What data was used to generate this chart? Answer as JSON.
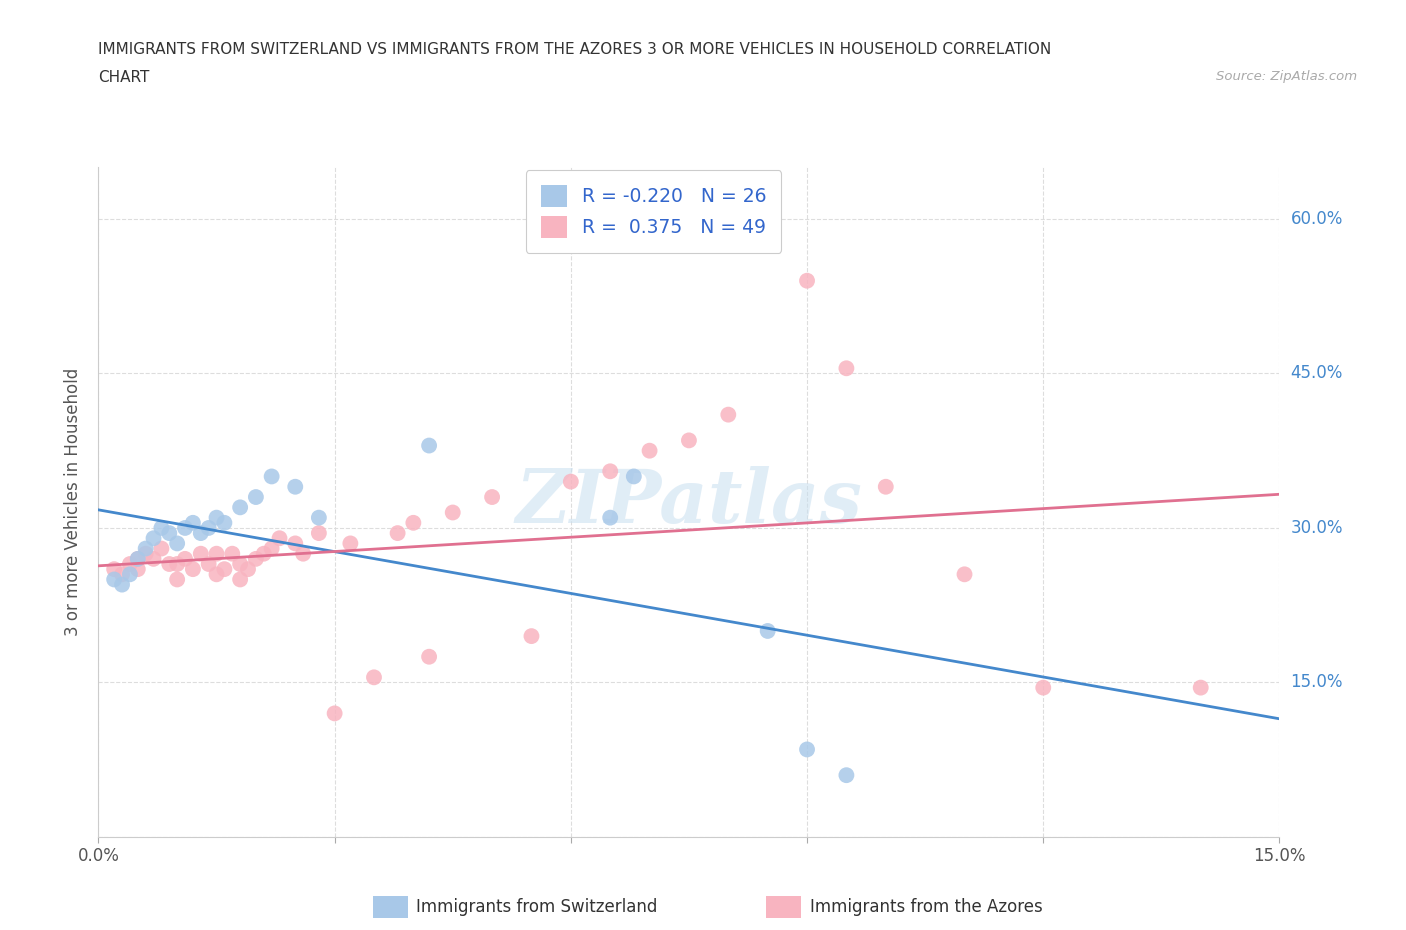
{
  "title_line1": "IMMIGRANTS FROM SWITZERLAND VS IMMIGRANTS FROM THE AZORES 3 OR MORE VEHICLES IN HOUSEHOLD CORRELATION",
  "title_line2": "CHART",
  "source_text": "Source: ZipAtlas.com",
  "ylabel": "3 or more Vehicles in Household",
  "legend_label1": "Immigrants from Switzerland",
  "legend_label2": "Immigrants from the Azores",
  "r1": -0.22,
  "n1": 26,
  "r2": 0.375,
  "n2": 49,
  "xlim": [
    0.0,
    0.15
  ],
  "ylim": [
    0.0,
    0.65
  ],
  "xtick_positions": [
    0.0,
    0.03,
    0.06,
    0.09,
    0.12,
    0.15
  ],
  "xtick_labels": [
    "0.0%",
    "",
    "",
    "",
    "",
    "15.0%"
  ],
  "ytick_positions": [
    0.0,
    0.15,
    0.3,
    0.45,
    0.6
  ],
  "ytick_labels": [
    "",
    "15.0%",
    "30.0%",
    "45.0%",
    "60.0%"
  ],
  "color_swiss": "#a8c8e8",
  "color_azores": "#f8b4c0",
  "line_color_swiss": "#4488cc",
  "line_color_azores": "#e07090",
  "watermark": "ZIPatlas",
  "swiss_x": [
    0.002,
    0.003,
    0.004,
    0.005,
    0.006,
    0.007,
    0.008,
    0.009,
    0.01,
    0.011,
    0.012,
    0.013,
    0.014,
    0.015,
    0.016,
    0.018,
    0.02,
    0.022,
    0.025,
    0.028,
    0.042,
    0.065,
    0.068,
    0.085,
    0.09,
    0.095
  ],
  "swiss_y": [
    0.25,
    0.245,
    0.255,
    0.27,
    0.28,
    0.29,
    0.3,
    0.295,
    0.285,
    0.3,
    0.305,
    0.295,
    0.3,
    0.31,
    0.305,
    0.32,
    0.33,
    0.35,
    0.34,
    0.31,
    0.38,
    0.31,
    0.35,
    0.2,
    0.085,
    0.06
  ],
  "azores_x": [
    0.002,
    0.003,
    0.004,
    0.005,
    0.005,
    0.006,
    0.007,
    0.008,
    0.009,
    0.01,
    0.01,
    0.011,
    0.012,
    0.013,
    0.014,
    0.015,
    0.015,
    0.016,
    0.017,
    0.018,
    0.018,
    0.019,
    0.02,
    0.021,
    0.022,
    0.023,
    0.025,
    0.026,
    0.028,
    0.03,
    0.032,
    0.035,
    0.038,
    0.04,
    0.042,
    0.045,
    0.05,
    0.055,
    0.06,
    0.065,
    0.07,
    0.075,
    0.08,
    0.09,
    0.095,
    0.1,
    0.11,
    0.12,
    0.14
  ],
  "azores_y": [
    0.26,
    0.255,
    0.265,
    0.26,
    0.27,
    0.275,
    0.27,
    0.28,
    0.265,
    0.25,
    0.265,
    0.27,
    0.26,
    0.275,
    0.265,
    0.275,
    0.255,
    0.26,
    0.275,
    0.25,
    0.265,
    0.26,
    0.27,
    0.275,
    0.28,
    0.29,
    0.285,
    0.275,
    0.295,
    0.12,
    0.285,
    0.155,
    0.295,
    0.305,
    0.175,
    0.315,
    0.33,
    0.195,
    0.345,
    0.355,
    0.375,
    0.385,
    0.41,
    0.54,
    0.455,
    0.34,
    0.255,
    0.145,
    0.145
  ]
}
